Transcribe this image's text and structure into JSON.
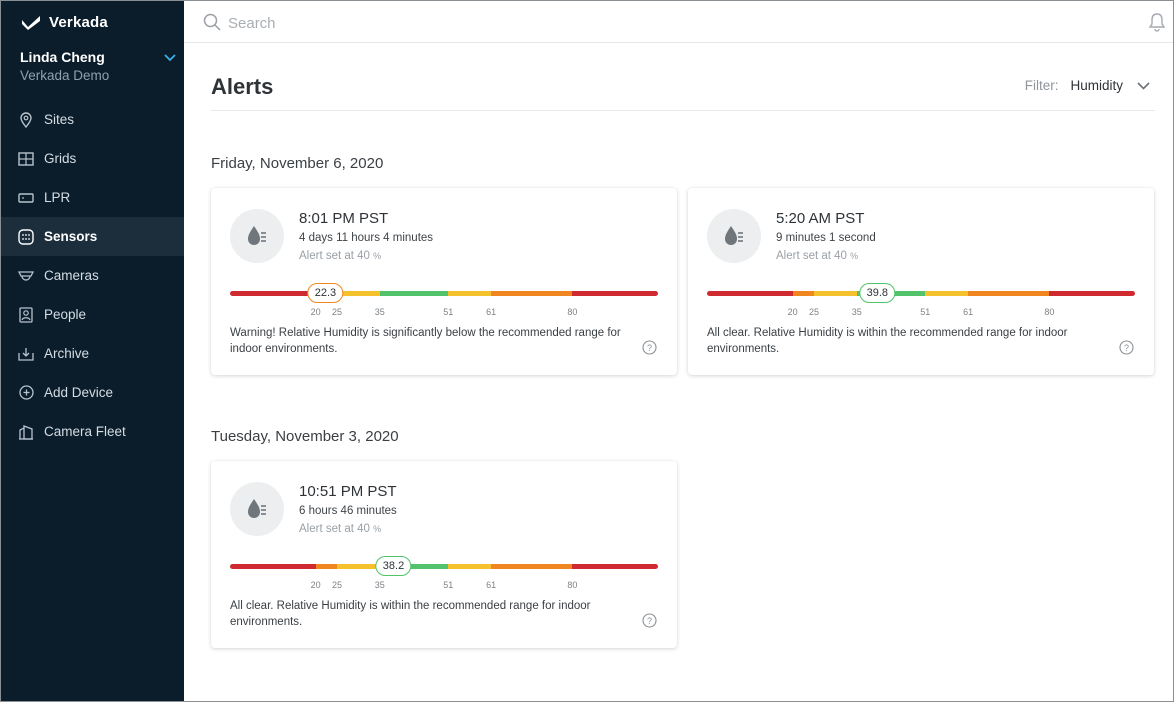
{
  "brand": {
    "name": "Verkada"
  },
  "user": {
    "name": "Linda Cheng",
    "org": "Verkada Demo"
  },
  "nav": [
    {
      "label": "Sites",
      "icon": "pin-icon"
    },
    {
      "label": "Grids",
      "icon": "grid-icon"
    },
    {
      "label": "LPR",
      "icon": "plate-icon"
    },
    {
      "label": "Sensors",
      "icon": "sensor-icon",
      "active": true
    },
    {
      "label": "Cameras",
      "icon": "camera-icon"
    },
    {
      "label": "People",
      "icon": "person-icon"
    },
    {
      "label": "Archive",
      "icon": "archive-icon"
    },
    {
      "label": "Add Device",
      "icon": "plus-circle-icon"
    },
    {
      "label": "Camera Fleet",
      "icon": "camera-fleet-icon"
    }
  ],
  "search": {
    "placeholder": "Search"
  },
  "page": {
    "title": "Alerts",
    "filter_label": "Filter:",
    "filter_value": "Humidity"
  },
  "groups": [
    {
      "date": "Friday, November 6, 2020",
      "alerts": [
        {
          "time": "8:01 PM PST",
          "duration": "4 days 11 hours 4 minutes",
          "alert_set": "Alert set at 40",
          "unit": "%",
          "value": "22.3",
          "status": "warn",
          "message": "Warning! Relative Humidity is significantly below the recommended range for indoor environments."
        },
        {
          "time": "5:20 AM PST",
          "duration": "9 minutes 1 second",
          "alert_set": "Alert set at 40",
          "unit": "%",
          "value": "39.8",
          "status": "ok",
          "message": "All clear. Relative Humidity is within the recommended range for indoor environments."
        }
      ]
    },
    {
      "date": "Tuesday, November 3, 2020",
      "alerts": [
        {
          "time": "10:51 PM PST",
          "duration": "6 hours 46 minutes",
          "alert_set": "Alert set at 40",
          "unit": "%",
          "value": "38.2",
          "status": "ok",
          "message": "All clear. Relative Humidity is within the recommended range for indoor environments."
        }
      ]
    }
  ],
  "scale": {
    "ticks": [
      "20",
      "25",
      "35",
      "51",
      "61",
      "80"
    ],
    "segments": [
      {
        "color": "red",
        "from": 0,
        "to": 20
      },
      {
        "color": "orange",
        "from": 20,
        "to": 25
      },
      {
        "color": "yellow",
        "from": 25,
        "to": 35
      },
      {
        "color": "green",
        "from": 35,
        "to": 51
      },
      {
        "color": "yellow",
        "from": 51,
        "to": 61
      },
      {
        "color": "orange",
        "from": 61,
        "to": 80
      },
      {
        "color": "red",
        "from": 80,
        "to": 100
      }
    ]
  },
  "colors": {
    "sidebar": "#0b1d2b",
    "red": "#cf2a2f",
    "orange": "#f0861f",
    "yellow": "#f5c12d",
    "green": "#52c26b"
  }
}
